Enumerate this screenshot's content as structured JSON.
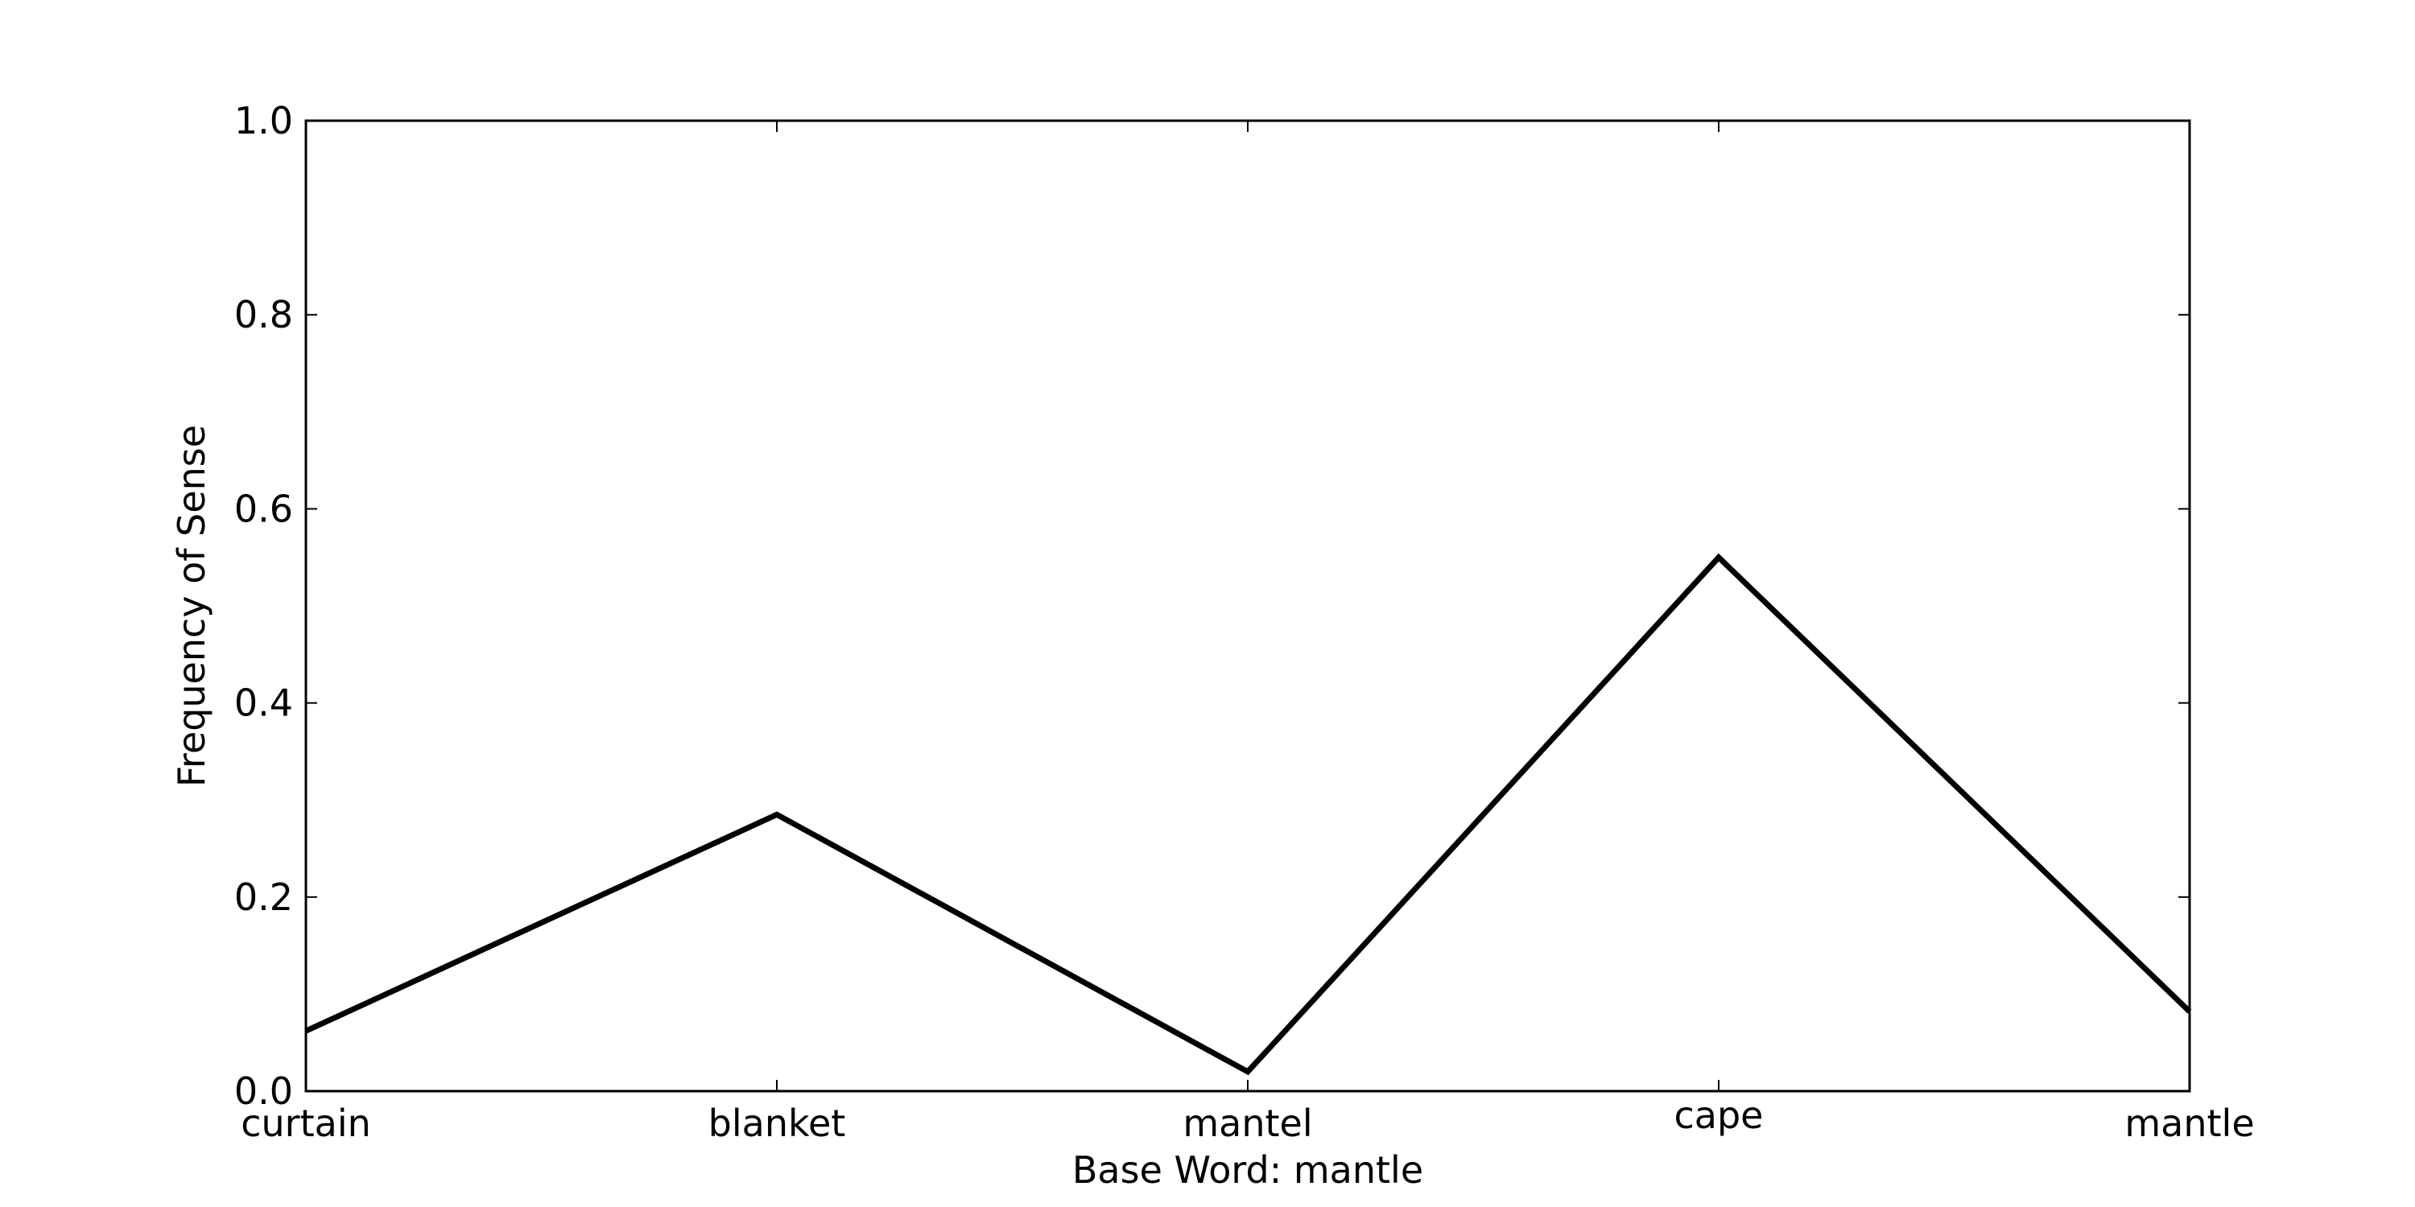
{
  "chart_data": {
    "type": "line",
    "title": "",
    "xlabel": "Base Word: mantle",
    "ylabel": "Frequency of Sense",
    "categories": [
      "curtain",
      "blanket",
      "mantel",
      "cape",
      "mantle"
    ],
    "series": [
      {
        "values": [
          0.062,
          0.285,
          0.02,
          0.55,
          0.082
        ],
        "color": "#000000"
      }
    ],
    "ylim": [
      0,
      1
    ],
    "yticks": [
      "0.0",
      "0.2",
      "0.4",
      "0.6",
      "0.8",
      "1.0"
    ],
    "grid": false,
    "legend": "none"
  }
}
